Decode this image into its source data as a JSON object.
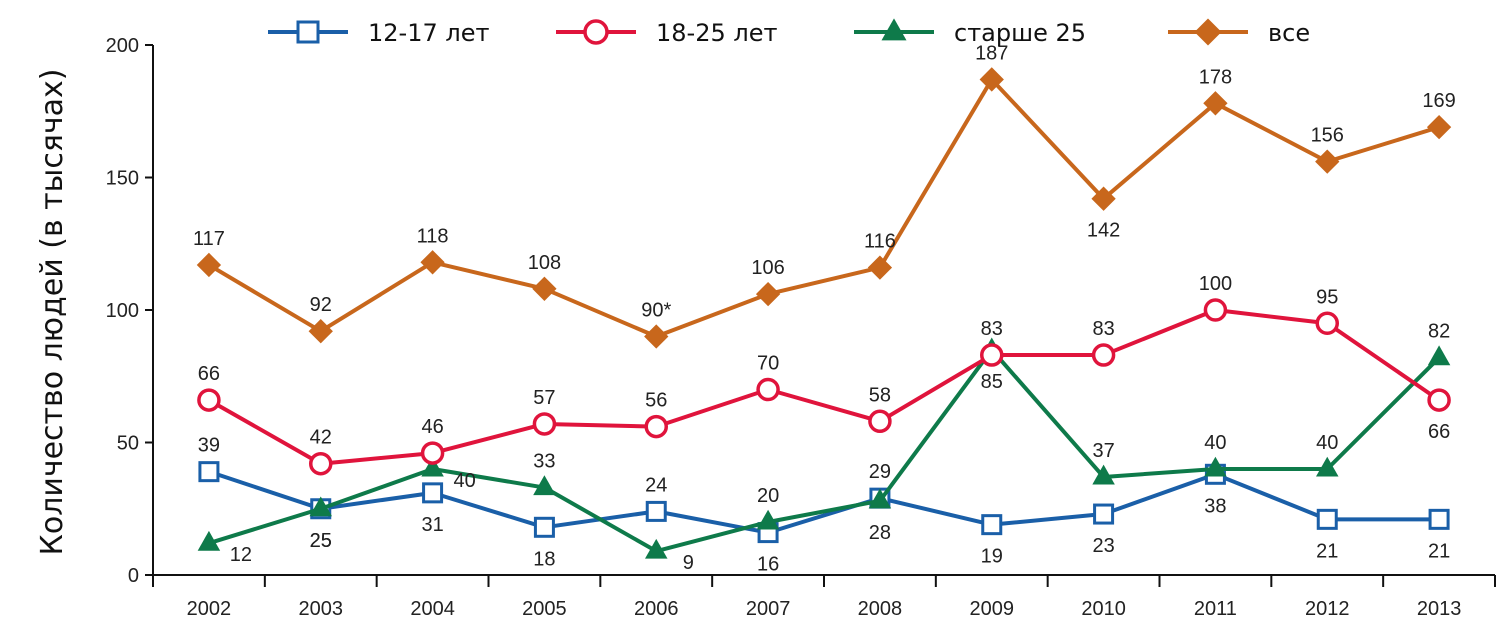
{
  "chart_data": {
    "type": "line",
    "ylabel": "Количество людей (в тысячах)",
    "ylim": [
      0,
      200
    ],
    "yticks": [
      "0",
      "50",
      "100",
      "150",
      "200"
    ],
    "x": [
      "2002",
      "2003",
      "2004",
      "2005",
      "2006",
      "2007",
      "2008",
      "2009",
      "2010",
      "2011",
      "2012",
      "2013"
    ],
    "legend_position": "top",
    "series": [
      {
        "name": "12-17 лет",
        "color": "#1a5fa8",
        "marker": "square-open",
        "values": [
          39,
          25,
          31,
          18,
          24,
          16,
          29,
          19,
          23,
          38,
          21,
          21
        ],
        "labels": [
          "39",
          "25",
          "31",
          "18",
          "24",
          "16",
          "29",
          "19",
          "23",
          "38",
          "21",
          "21"
        ]
      },
      {
        "name": "18-25 лет",
        "color": "#e0143c",
        "marker": "circle-open",
        "values": [
          66,
          42,
          46,
          57,
          56,
          70,
          58,
          83,
          83,
          100,
          95,
          66
        ],
        "labels": [
          "66",
          "42",
          "46",
          "57",
          "56",
          "70",
          "58",
          "83",
          "83",
          "100",
          "95",
          "66"
        ]
      },
      {
        "name": "старше 25",
        "color": "#0e7a4a",
        "marker": "triangle",
        "values": [
          12,
          25,
          40,
          33,
          9,
          20,
          28,
          85,
          37,
          40,
          40,
          82
        ],
        "labels": [
          "12",
          "25",
          "40",
          "33",
          "9",
          "20",
          "28",
          "85",
          "37",
          "40",
          "40",
          "82"
        ]
      },
      {
        "name": "все",
        "color": "#c8671c",
        "marker": "diamond",
        "values": [
          117,
          92,
          118,
          108,
          90,
          106,
          116,
          187,
          142,
          178,
          156,
          169
        ],
        "labels": [
          "117",
          "92",
          "118",
          "108",
          "90*",
          "106",
          "116",
          "187",
          "142",
          "178",
          "156",
          "169"
        ]
      }
    ]
  }
}
